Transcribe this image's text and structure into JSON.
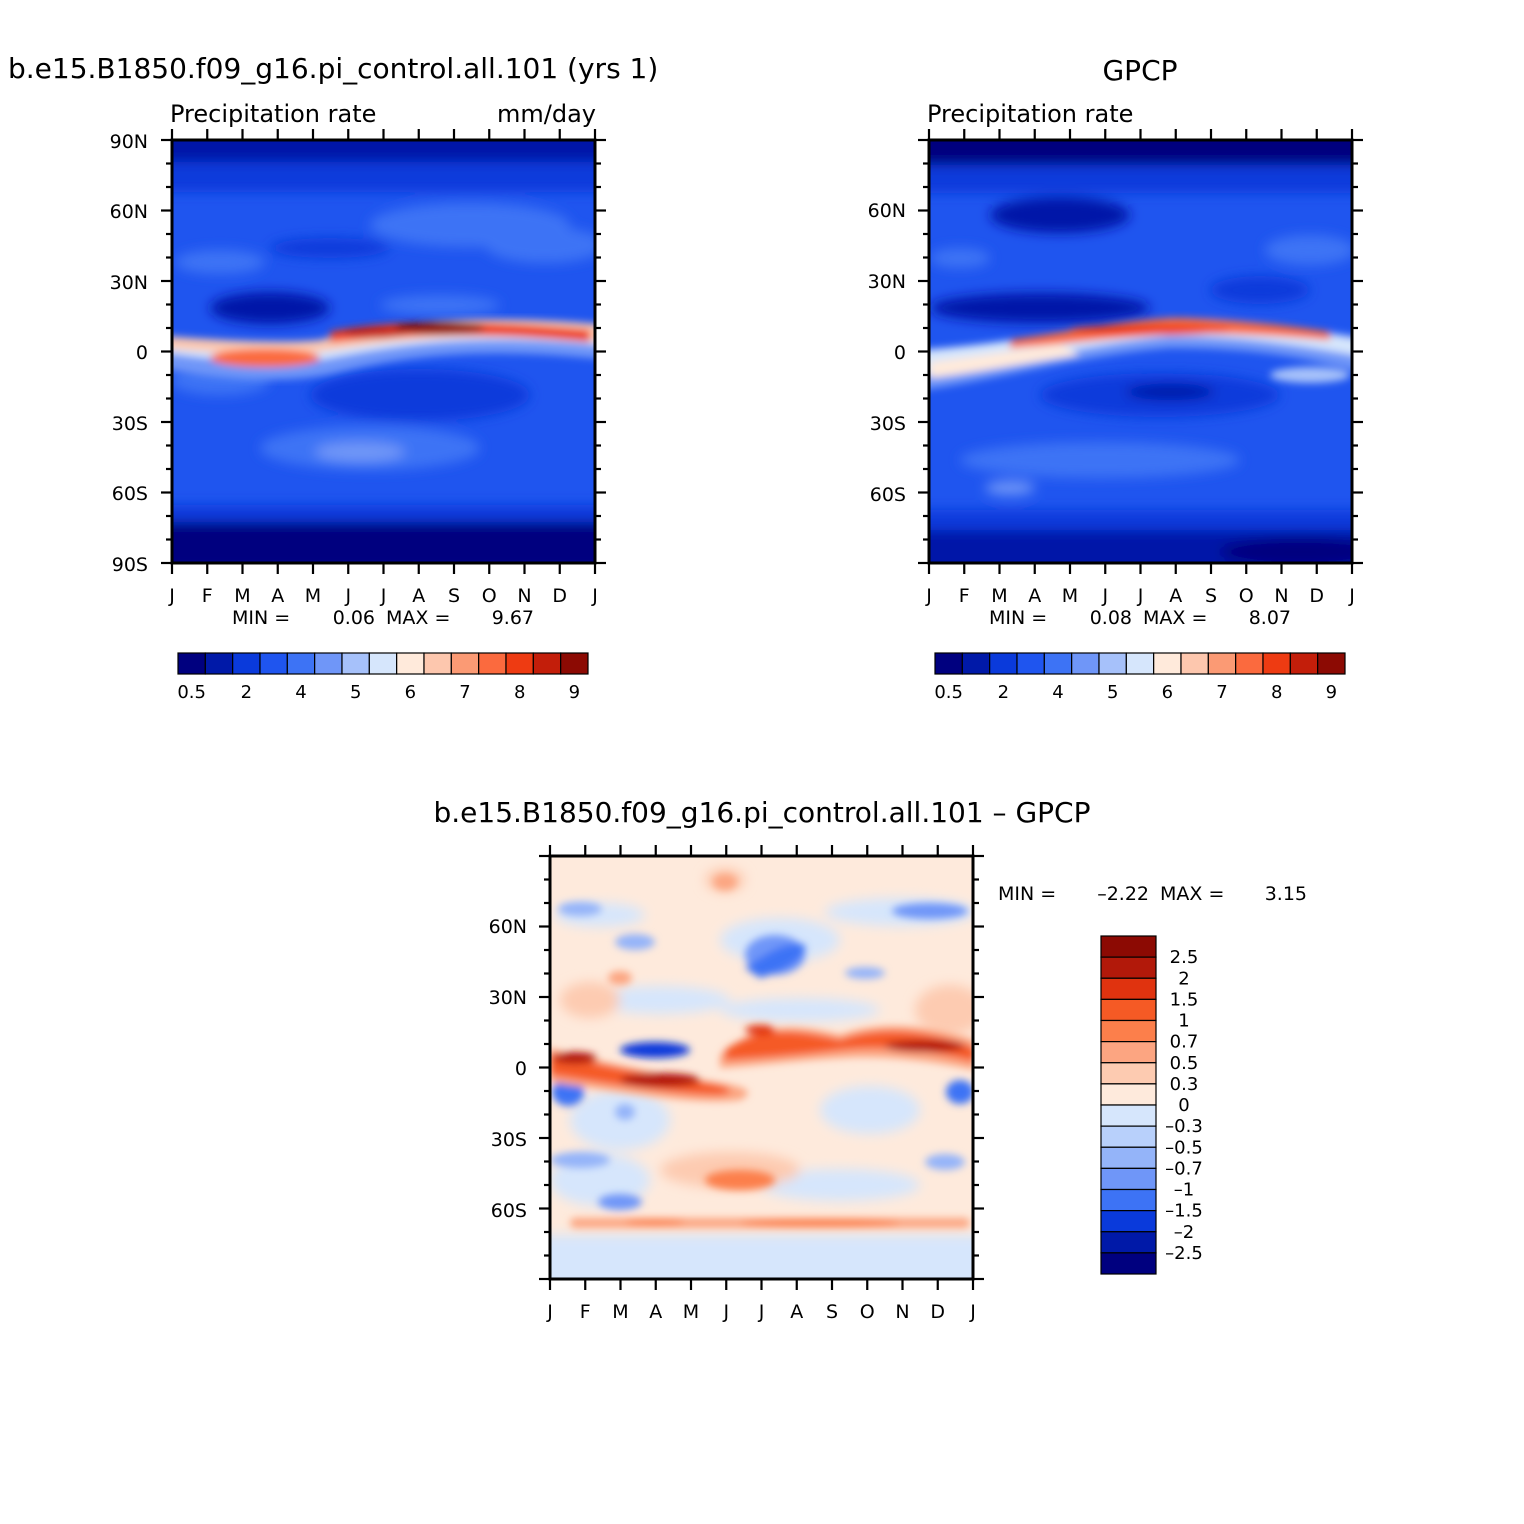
{
  "chart_data": [
    {
      "type": "heatmap",
      "title": "b.e15.B1850.f09_g16.pi_control.all.101 (yrs 1)",
      "subtitle_left": "Precipitation rate",
      "subtitle_right": "mm/day",
      "x_tick_labels": [
        "J",
        "F",
        "M",
        "A",
        "M",
        "J",
        "J",
        "A",
        "S",
        "O",
        "N",
        "D",
        "J"
      ],
      "y_tick_labels": [
        "90N",
        "60N",
        "30N",
        "0",
        "30S",
        "60S",
        "90S"
      ],
      "stats": {
        "min_label": "MIN =",
        "min": "0.06",
        "max_label": "MAX =",
        "max": "9.67"
      },
      "colorbar": {
        "orientation": "horizontal",
        "labels": [
          "0.5",
          "2",
          "4",
          "5",
          "6",
          "7",
          "8",
          "9"
        ],
        "colors": [
          "#00007f",
          "#0019a8",
          "#0a3adb",
          "#1f55ef",
          "#3d73f5",
          "#6f96f8",
          "#a6c1fa",
          "#d6e6fc",
          "#ffeadb",
          "#fdc7ae",
          "#fb9a74",
          "#fb6a3e",
          "#ee3b12",
          "#c31e0a",
          "#8c0a03"
        ]
      }
    },
    {
      "type": "heatmap",
      "title": "GPCP",
      "subtitle_left": "Precipitation rate",
      "subtitle_right": "",
      "x_tick_labels": [
        "J",
        "F",
        "M",
        "A",
        "M",
        "J",
        "J",
        "A",
        "S",
        "O",
        "N",
        "D",
        "J"
      ],
      "y_tick_labels": [
        "60N",
        "30N",
        "0",
        "30S",
        "60S"
      ],
      "stats": {
        "min_label": "MIN =",
        "min": "0.08",
        "max_label": "MAX =",
        "max": "8.07"
      },
      "colorbar": {
        "orientation": "horizontal",
        "labels": [
          "0.5",
          "2",
          "4",
          "5",
          "6",
          "7",
          "8",
          "9"
        ],
        "colors": [
          "#00007f",
          "#0019a8",
          "#0a3adb",
          "#1f55ef",
          "#3d73f5",
          "#6f96f8",
          "#a6c1fa",
          "#d6e6fc",
          "#ffeadb",
          "#fdc7ae",
          "#fb9a74",
          "#fb6a3e",
          "#ee3b12",
          "#c31e0a",
          "#8c0a03"
        ]
      }
    },
    {
      "type": "heatmap",
      "title": "b.e15.B1850.f09_g16.pi_control.all.101 – GPCP",
      "x_tick_labels": [
        "J",
        "F",
        "M",
        "A",
        "M",
        "J",
        "J",
        "A",
        "S",
        "O",
        "N",
        "D",
        "J"
      ],
      "y_tick_labels": [
        "60N",
        "30N",
        "0",
        "30S",
        "60S"
      ],
      "stats": {
        "min_label": "MIN =",
        "min": "–2.22",
        "max_label": "MAX =",
        "max": "3.15"
      },
      "colorbar": {
        "orientation": "vertical",
        "labels": [
          "2.5",
          "2",
          "1.5",
          "1",
          "0.7",
          "0.5",
          "0.3",
          "0",
          "–0.3",
          "–0.5",
          "–0.7",
          "–1",
          "–1.5",
          "–2",
          "–2.5"
        ],
        "colors": [
          "#8c0a03",
          "#b2190a",
          "#e0330f",
          "#f55a25",
          "#fc7f4b",
          "#fca581",
          "#fdcbb1",
          "#feeadc",
          "#d6e6fc",
          "#b8d0fb",
          "#94b4f9",
          "#6f96f8",
          "#3d73f5",
          "#0a3adb",
          "#0019a8",
          "#00007f"
        ]
      }
    }
  ]
}
